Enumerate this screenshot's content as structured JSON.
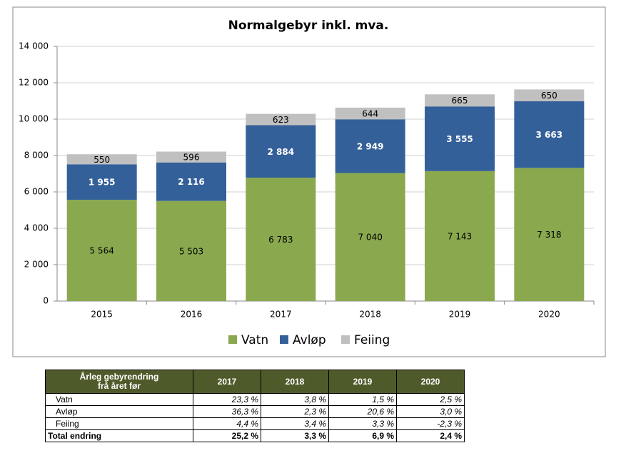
{
  "chart_data": {
    "type": "bar",
    "stacked": true,
    "title": "Normalgebyr inkl. mva.",
    "categories": [
      "2015",
      "2016",
      "2017",
      "2018",
      "2019",
      "2020"
    ],
    "series": [
      {
        "name": "Vatn",
        "color": "#8aa84e",
        "label_color": "#000000",
        "values": [
          5564,
          5503,
          6783,
          7040,
          7143,
          7318
        ],
        "value_labels": [
          "5 564",
          "5 503",
          "6 783",
          "7 040",
          "7 143",
          "7 318"
        ]
      },
      {
        "name": "Avløp",
        "color": "#34609a",
        "label_color": "#ffffff",
        "values": [
          1955,
          2116,
          2884,
          2949,
          3555,
          3663
        ],
        "value_labels": [
          "1 955",
          "2 116",
          "2 884",
          "2 949",
          "3 555",
          "3 663"
        ]
      },
      {
        "name": "Feiing",
        "color": "#c0c0c0",
        "label_color": "#000000",
        "values": [
          550,
          596,
          623,
          644,
          665,
          650
        ]
      }
    ],
    "ylim": [
      0,
      14000
    ],
    "yticks": [
      0,
      {
        "value": 2000,
        "label": "2 000"
      },
      {
        "value": 4000,
        "label": "4 000"
      },
      {
        "value": 6000,
        "label": "6 000"
      },
      {
        "value": 8000,
        "label": "8 000"
      },
      {
        "value": 10000,
        "label": "10 000"
      },
      {
        "value": 12000,
        "label": "12 000"
      },
      {
        "value": 14000,
        "label": "14 000"
      }
    ],
    "grid": true,
    "legend": "bottom"
  },
  "table": {
    "header": [
      [
        "Årleg gebyrendring",
        "frå året før"
      ],
      "2017",
      "2018",
      "2019",
      "2020"
    ],
    "rows": [
      [
        "Vatn",
        "23,3 %",
        "3,8 %",
        "1,5 %",
        "2,5 %"
      ],
      [
        "Avløp",
        "36,3 %",
        "2,3 %",
        "20,6 %",
        "3,0 %"
      ],
      [
        "Feiing",
        "4,4 %",
        "3,4 %",
        "3,3 %",
        "-2,3 %"
      ]
    ],
    "total": [
      "Total endring",
      "25,2 %",
      "3,3 %",
      "6,9 %",
      "2,4 %"
    ]
  }
}
